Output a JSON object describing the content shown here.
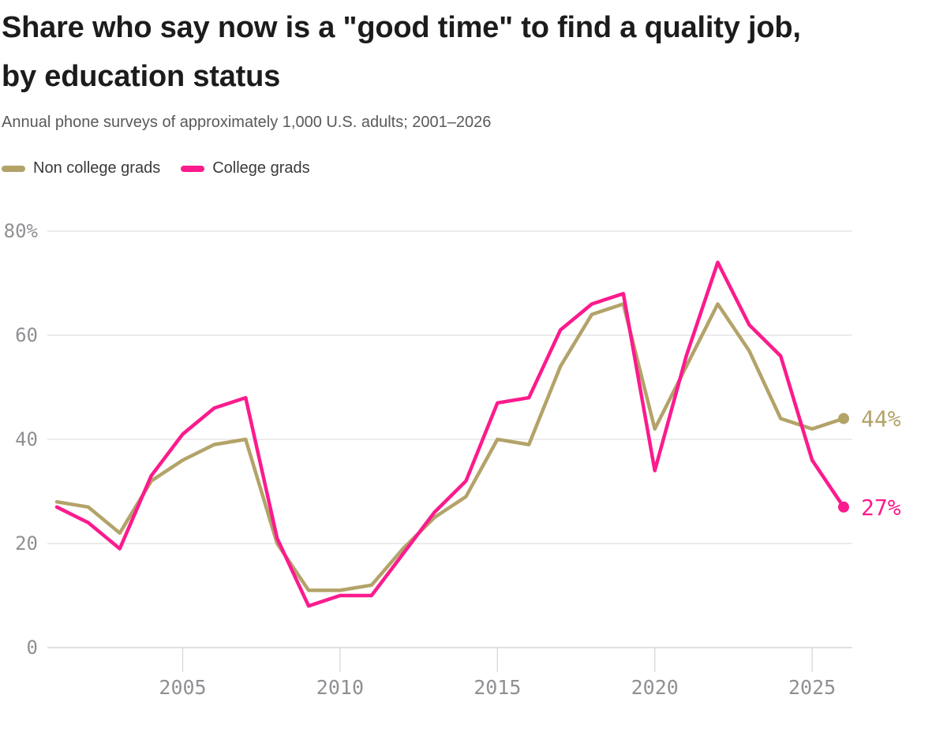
{
  "header": {
    "title_line1": "Share who say now is a \"good time\" to find a quality job,",
    "title_line2": "by education status",
    "subtitle": "Annual phone surveys of approximately 1,000 U.S. adults; 2001–2026"
  },
  "legend": {
    "items": [
      {
        "label": "Non college grads",
        "color": "#b3a369"
      },
      {
        "label": "College grads",
        "color": "#fb1b8d"
      }
    ]
  },
  "chart_data": {
    "type": "line",
    "title": "Share who say now is a \"good time\" to find a quality job, by education status",
    "subtitle": "Annual phone surveys of approximately 1,000 U.S. adults; 2001–2026",
    "x": [
      2001,
      2002,
      2003,
      2004,
      2005,
      2006,
      2007,
      2008,
      2009,
      2010,
      2011,
      2012,
      2013,
      2014,
      2015,
      2016,
      2017,
      2018,
      2019,
      2020,
      2021,
      2022,
      2023,
      2024,
      2025,
      2026
    ],
    "series": [
      {
        "name": "Non college grads",
        "color": "#b3a369",
        "end_label": "44%",
        "values": [
          28,
          27,
          22,
          32,
          36,
          39,
          40,
          20,
          11,
          11,
          12,
          19,
          25,
          29,
          40,
          39,
          54,
          64,
          66,
          42,
          54,
          66,
          57,
          44,
          42,
          44
        ]
      },
      {
        "name": "College grads",
        "color": "#fb1b8d",
        "end_label": "27%",
        "values": [
          27,
          24,
          19,
          33,
          41,
          46,
          48,
          21,
          8,
          10,
          10,
          18,
          26,
          32,
          47,
          48,
          61,
          66,
          68,
          34,
          56,
          74,
          62,
          56,
          36,
          27
        ]
      }
    ],
    "ylim": [
      0,
      80
    ],
    "xlabel": "",
    "ylabel": "",
    "yticks": [
      {
        "value": 80,
        "label": "80%"
      },
      {
        "value": 60,
        "label": "60"
      },
      {
        "value": 40,
        "label": "40"
      },
      {
        "value": 20,
        "label": "20"
      },
      {
        "value": 0,
        "label": "0"
      }
    ],
    "xticks": [
      {
        "value": 2005,
        "label": "2005"
      },
      {
        "value": 2010,
        "label": "2010"
      },
      {
        "value": 2015,
        "label": "2015"
      },
      {
        "value": 2020,
        "label": "2020"
      },
      {
        "value": 2025,
        "label": "2025"
      }
    ],
    "grid": "horizontal",
    "legend_position": "top-left"
  },
  "colors": {
    "title_text": "#1c1c1c",
    "subtitle_text": "#57595b",
    "axis_text": "#8f9093",
    "gridline": "#e0e0e0",
    "baseline": "#cfcfcf",
    "tick_line": "#d8d8d8",
    "background": "#ffffff"
  }
}
